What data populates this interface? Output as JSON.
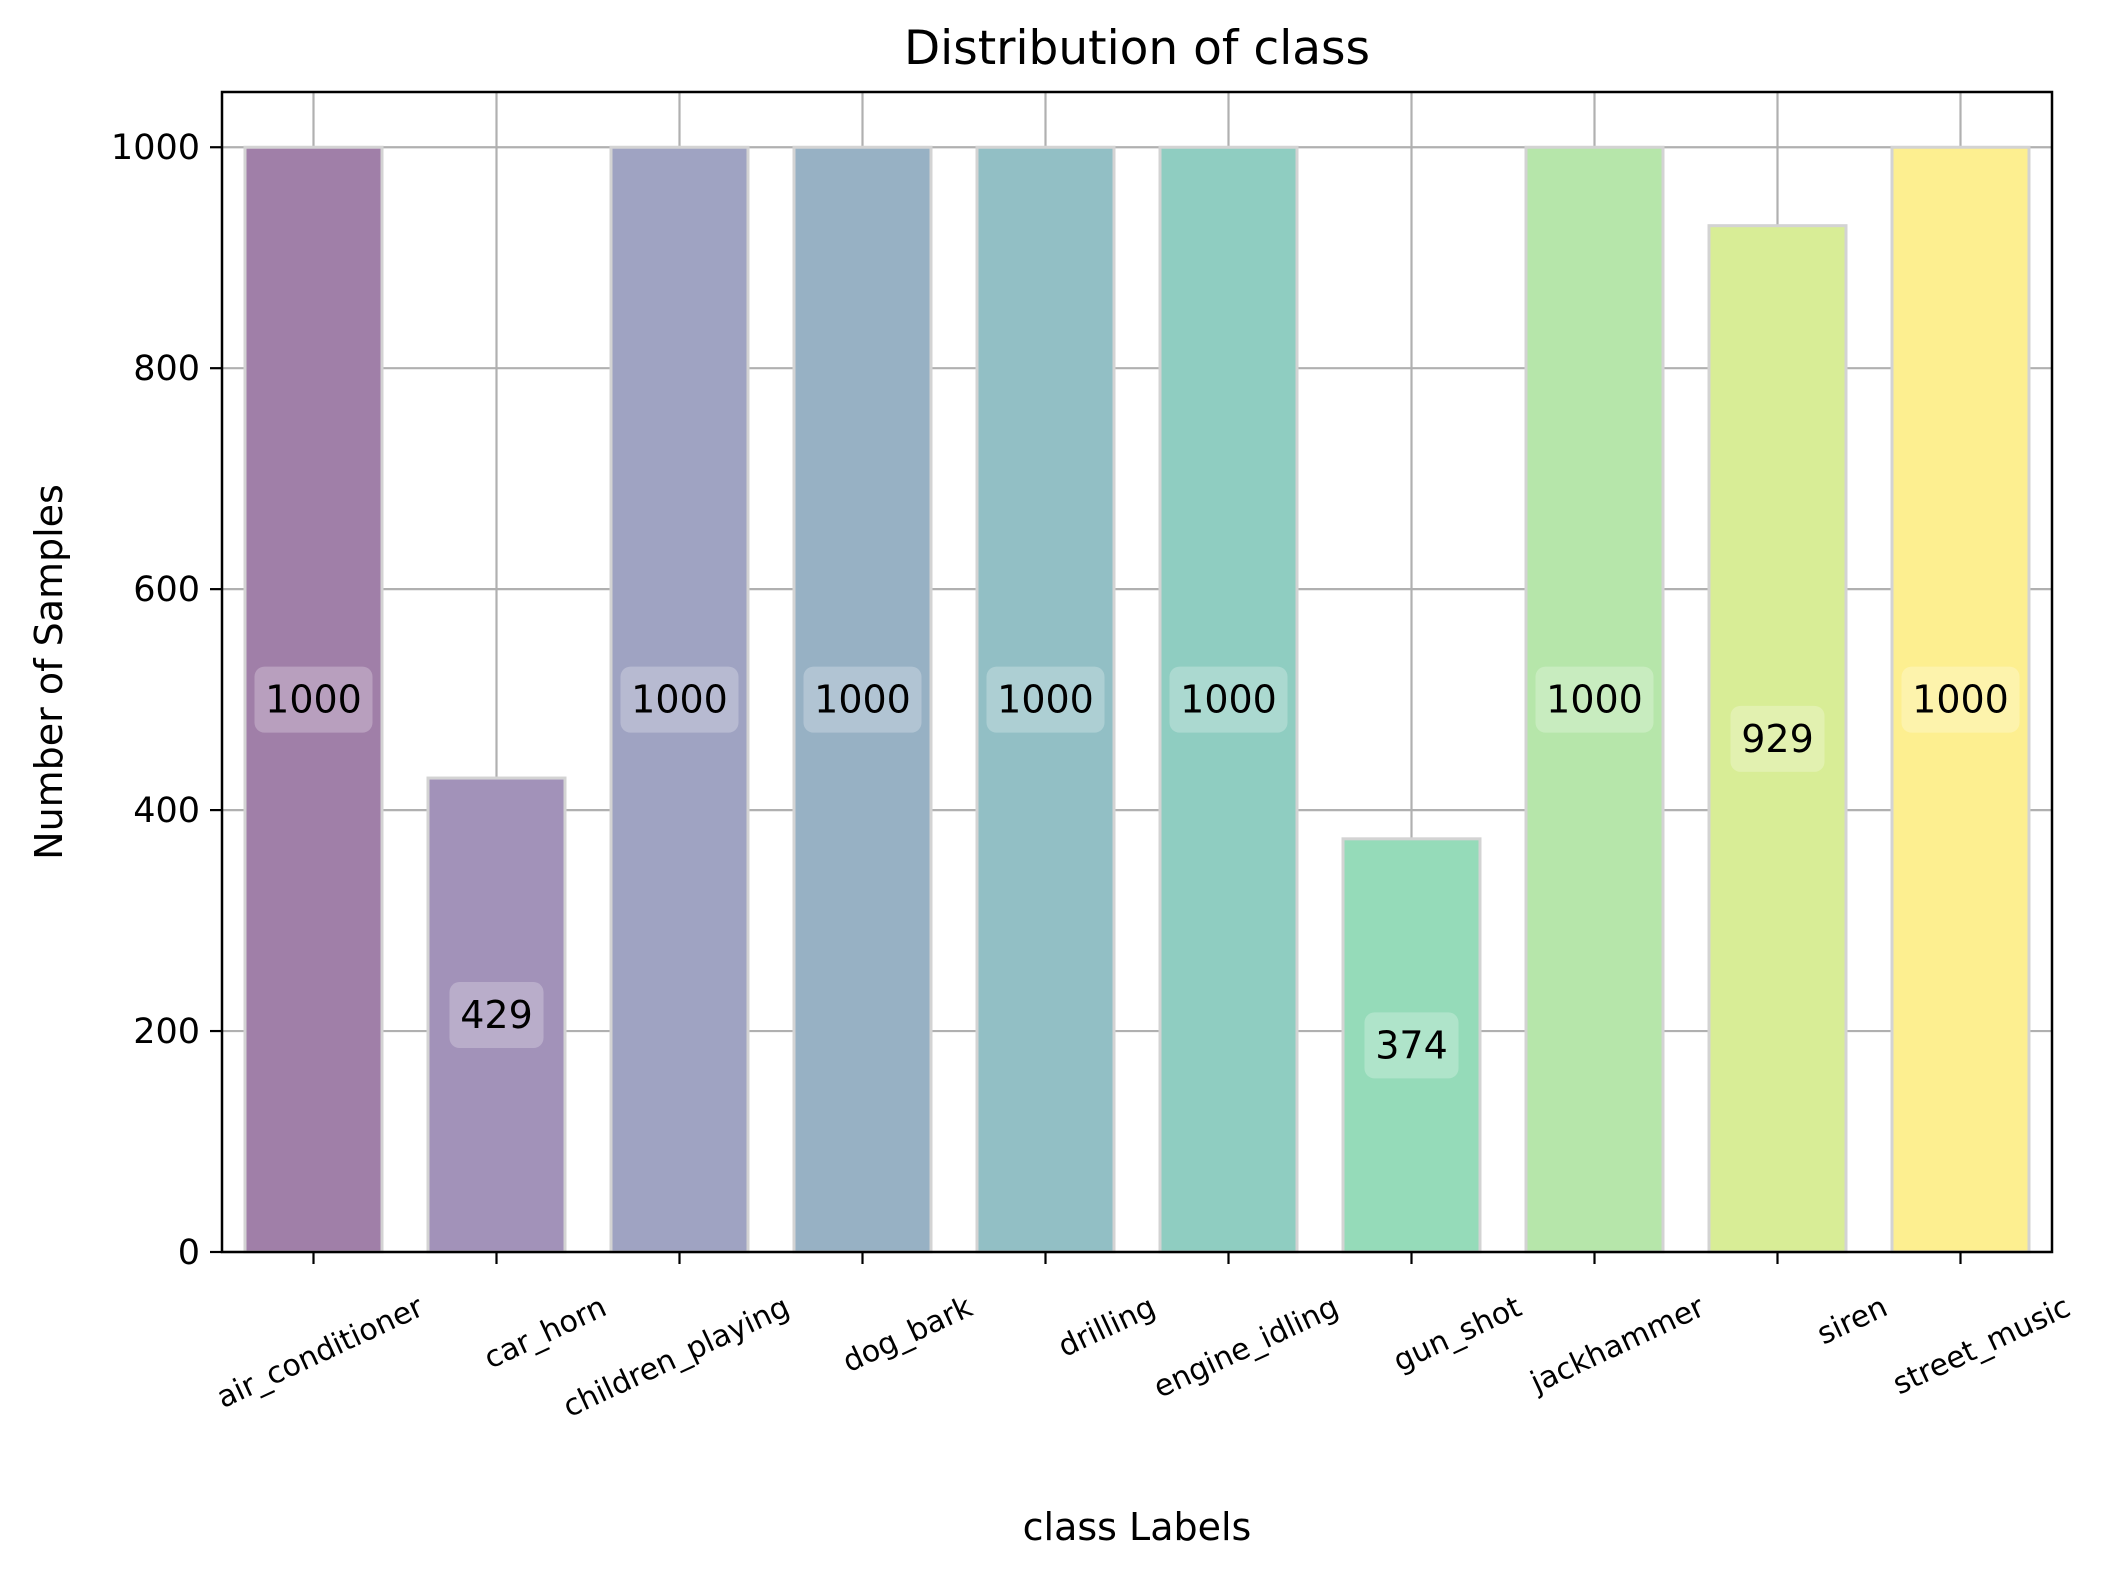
{
  "chart_data": {
    "type": "bar",
    "title": "Distribution of class",
    "xlabel": "class Labels",
    "ylabel": "Number of Samples",
    "categories": [
      "air_conditioner",
      "car_horn",
      "children_playing",
      "dog_bark",
      "drilling",
      "engine_idling",
      "gun_shot",
      "jackhammer",
      "siren",
      "street_music"
    ],
    "values": [
      1000,
      429,
      1000,
      1000,
      1000,
      1000,
      374,
      1000,
      929,
      1000
    ],
    "colors": [
      "#a07fa8",
      "#a292b9",
      "#9fa3c2",
      "#97b1c4",
      "#92bfc5",
      "#8fcdc1",
      "#95dbb9",
      "#b6e6aa",
      "#d8ed96",
      "#fdef90"
    ],
    "ylim": [
      0,
      1050
    ],
    "yticks": [
      0,
      200,
      400,
      600,
      800,
      1000
    ],
    "grid": true,
    "xtick_rotation_deg": -25
  }
}
